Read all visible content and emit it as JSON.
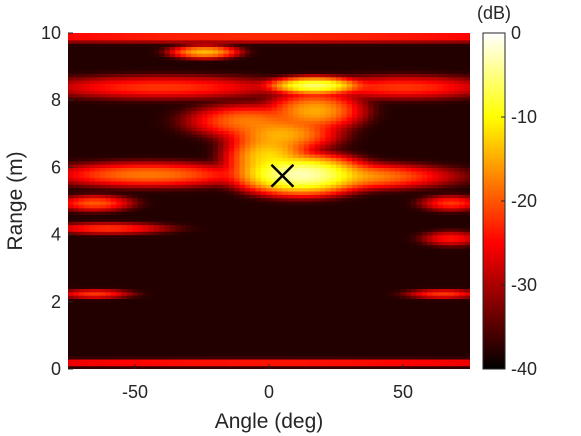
{
  "chart_data": {
    "type": "heatmap",
    "xlabel": "Angle (deg)",
    "ylabel": "Range (m)",
    "colorbar_label": "(dB)",
    "xlim": [
      -75,
      75
    ],
    "ylim": [
      0,
      10
    ],
    "clim": [
      -40,
      0
    ],
    "colormap": "hot",
    "x_ticks": [
      -50,
      0,
      50
    ],
    "x_tick_labels": [
      "-50",
      "0",
      "50"
    ],
    "y_ticks": [
      0,
      2,
      4,
      6,
      8,
      10
    ],
    "y_tick_labels": [
      "0",
      "2",
      "4",
      "6",
      "8",
      "10"
    ],
    "colorbar_ticks": [
      0,
      -10,
      -20,
      -30,
      -40
    ],
    "colorbar_tick_labels": [
      "0",
      "-10",
      "-20",
      "-30",
      "-40"
    ],
    "marker": {
      "symbol": "x",
      "angle_deg": 5,
      "range_m": 5.75,
      "color": "#000000"
    },
    "background_level_db": -38,
    "features": [
      {
        "angle_deg": 12,
        "range_m": 5.8,
        "level_db": -3,
        "angle_width_deg": 16,
        "range_width_m": 0.4
      },
      {
        "angle_deg": 0,
        "range_m": 6.3,
        "level_db": -12,
        "angle_width_deg": 12,
        "range_width_m": 0.6
      },
      {
        "angle_deg": 17,
        "range_m": 8.45,
        "level_db": -6,
        "angle_width_deg": 12,
        "range_width_m": 0.18
      },
      {
        "angle_deg": 17,
        "range_m": 7.7,
        "level_db": -15,
        "angle_width_deg": 14,
        "range_width_m": 0.45
      },
      {
        "angle_deg": 5,
        "range_m": 7.0,
        "level_db": -15,
        "angle_width_deg": 16,
        "range_width_m": 0.4
      },
      {
        "angle_deg": -8,
        "range_m": 7.4,
        "level_db": -18,
        "angle_width_deg": 18,
        "range_width_m": 0.4
      },
      {
        "angle_deg": -24,
        "range_m": 9.45,
        "level_db": -14,
        "angle_width_deg": 10,
        "range_width_m": 0.15
      },
      {
        "angle_deg": 30,
        "range_m": 5.75,
        "level_db": -16,
        "angle_width_deg": 30,
        "range_width_m": 0.3
      },
      {
        "angle_deg": -45,
        "range_m": 5.8,
        "level_db": -18,
        "angle_width_deg": 30,
        "range_width_m": 0.3
      },
      {
        "angle_deg": -65,
        "range_m": 4.95,
        "level_db": -20,
        "angle_width_deg": 12,
        "range_width_m": 0.2
      },
      {
        "angle_deg": 68,
        "range_m": 4.95,
        "level_db": -22,
        "angle_width_deg": 10,
        "range_width_m": 0.2
      },
      {
        "angle_deg": -60,
        "range_m": 4.2,
        "level_db": -22,
        "angle_width_deg": 20,
        "range_width_m": 0.15
      },
      {
        "angle_deg": 68,
        "range_m": 3.9,
        "level_db": -24,
        "angle_width_deg": 10,
        "range_width_m": 0.2
      },
      {
        "angle_deg": -65,
        "range_m": 2.25,
        "level_db": -22,
        "angle_width_deg": 12,
        "range_width_m": 0.12
      },
      {
        "angle_deg": 65,
        "range_m": 2.25,
        "level_db": -22,
        "angle_width_deg": 12,
        "range_width_m": 0.12
      },
      {
        "angle_deg": 0,
        "range_m": 0.2,
        "level_db": -22,
        "angle_width_deg": 150,
        "range_width_m": 0.1
      },
      {
        "angle_deg": -40,
        "range_m": 8.4,
        "level_db": -22,
        "angle_width_deg": 40,
        "range_width_m": 0.3
      },
      {
        "angle_deg": 50,
        "range_m": 8.4,
        "level_db": -22,
        "angle_width_deg": 30,
        "range_width_m": 0.3
      },
      {
        "angle_deg": 0,
        "range_m": 9.9,
        "level_db": -22,
        "angle_width_deg": 150,
        "range_width_m": 0.15
      }
    ]
  }
}
